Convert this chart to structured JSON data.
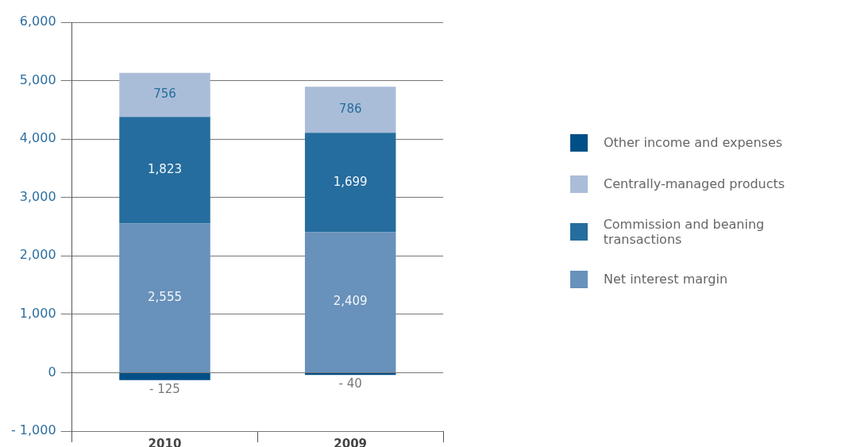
{
  "chart_data": {
    "type": "bar",
    "stacked": true,
    "categories": [
      "2010",
      "2009"
    ],
    "series": [
      {
        "name": "Net interest margin",
        "color": "#6891bb",
        "values": [
          2555,
          2409
        ],
        "value_labels": [
          "2,555",
          "2,409"
        ]
      },
      {
        "name": "Commission and beaning transactions",
        "color": "#256d9e",
        "values": [
          1823,
          1699
        ],
        "value_labels": [
          "1,823",
          "1,699"
        ]
      },
      {
        "name": "Centrally-managed products",
        "color": "#aabdd8",
        "values": [
          756,
          786
        ],
        "value_labels": [
          "756",
          "786"
        ]
      },
      {
        "name": "Other income and expenses",
        "color": "#004f86",
        "values": [
          -125,
          -40
        ],
        "value_labels": [
          "- 125",
          "- 40"
        ]
      }
    ],
    "ylim": [
      -1000,
      6000
    ],
    "yticks": [
      {
        "value": -1000,
        "label": "- 1,000"
      },
      0,
      {
        "value": 1000,
        "label": "1,000"
      },
      {
        "value": 2000,
        "label": "2,000"
      },
      {
        "value": 3000,
        "label": "3,000"
      },
      {
        "value": 4000,
        "label": "4,000"
      },
      {
        "value": 5000,
        "label": "5,000"
      },
      {
        "value": 6000,
        "label": "6,000"
      }
    ],
    "grid": "y",
    "legend": "right"
  }
}
